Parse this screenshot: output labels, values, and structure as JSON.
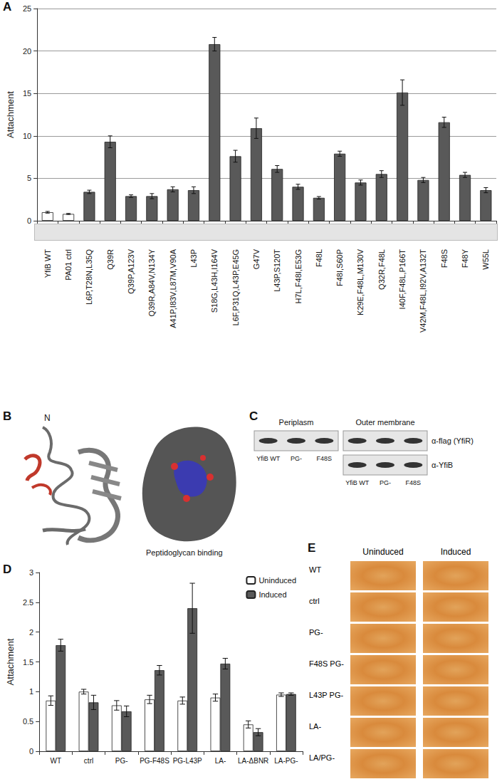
{
  "panel_labels": [
    "A",
    "B",
    "C",
    "D",
    "E"
  ],
  "chart_data": [
    {
      "type": "bar",
      "ylabel": "Attachment",
      "categories": [
        "YfiB WT",
        "PA01 ctrl",
        "L6P,T28N,L35Q",
        "Q39R",
        "Q39P,A123V",
        "Q39R,A84V,N134Y",
        "A41P,I83V,L87M,V90A",
        "L43P",
        "S18G,L43H,I164V",
        "L6F,P31Q,L43P,E45G",
        "G47V",
        "L43P,S120T",
        "H7L,F48I,E53G",
        "F48L",
        "F48I,S60P",
        "K29E,F48L,M130V",
        "Q32R,F48L",
        "I40F,F48L,P166T",
        "V42M,F48L,I92V,A132T",
        "F48S",
        "F48Y",
        "W55L"
      ],
      "values": [
        1.0,
        0.8,
        3.4,
        9.3,
        2.9,
        2.9,
        3.7,
        3.6,
        20.8,
        7.6,
        10.9,
        6.1,
        4.0,
        2.7,
        7.9,
        4.5,
        5.5,
        15.1,
        4.8,
        11.6,
        5.4,
        3.6
      ],
      "errors": [
        0.1,
        0.06,
        0.2,
        0.7,
        0.15,
        0.3,
        0.3,
        0.4,
        0.8,
        0.7,
        1.2,
        0.4,
        0.3,
        0.15,
        0.3,
        0.3,
        0.4,
        1.5,
        0.3,
        0.6,
        0.3,
        0.3
      ],
      "colors": [
        "#ffffff",
        "#ffffff",
        "#595959",
        "#595959",
        "#595959",
        "#595959",
        "#595959",
        "#595959",
        "#595959",
        "#595959",
        "#595959",
        "#595959",
        "#595959",
        "#595959",
        "#595959",
        "#595959",
        "#595959",
        "#595959",
        "#595959",
        "#595959",
        "#595959",
        "#595959"
      ],
      "ylim": [
        0,
        25
      ],
      "yticks": [
        0,
        5,
        10,
        15,
        20,
        25
      ],
      "grid": true
    },
    {
      "type": "bar",
      "ylabel": "Attachment",
      "categories": [
        "WT",
        "ctrl",
        "PG-",
        "PG-F48S",
        "PG-L43P",
        "LA-",
        "LA-ΔBNR",
        "LA-PG-"
      ],
      "series": [
        {
          "name": "Uninduced",
          "color": "#ffffff",
          "values": [
            0.85,
            1.0,
            0.77,
            0.87,
            0.85,
            0.9,
            0.45,
            0.95
          ],
          "errors": [
            0.08,
            0.04,
            0.08,
            0.07,
            0.06,
            0.06,
            0.06,
            0.03
          ]
        },
        {
          "name": "Induced",
          "color": "#595959",
          "values": [
            1.78,
            0.82,
            0.67,
            1.36,
            2.4,
            1.47,
            0.32,
            0.96
          ],
          "errors": [
            0.1,
            0.12,
            0.09,
            0.08,
            0.42,
            0.09,
            0.06,
            0.02
          ]
        }
      ],
      "ylim": [
        0,
        3
      ],
      "yticks": [
        0,
        0.5,
        1,
        1.5,
        2,
        2.5,
        3
      ],
      "legend": "upper right",
      "grid": false
    }
  ],
  "panel_b": {
    "n_terminus": "N",
    "annotation": "Peptidoglycan binding"
  },
  "panel_c": {
    "blots": [
      {
        "title": "Periplasm",
        "lanes": [
          "YfiB WT",
          "PG-",
          "F48S"
        ]
      },
      {
        "title": "Outer membrane",
        "lanes": [
          "YfiB WT",
          "PG-",
          "F48S"
        ]
      }
    ],
    "antibodies": [
      "α-flag (YfiR)",
      "α-YfiB"
    ]
  },
  "panel_e": {
    "columns": [
      "Uninduced",
      "Induced"
    ],
    "rows": [
      "WT",
      "ctrl",
      "PG-",
      "F48S PG-",
      "L43P PG-",
      "LA-",
      "LA/PG-"
    ]
  }
}
